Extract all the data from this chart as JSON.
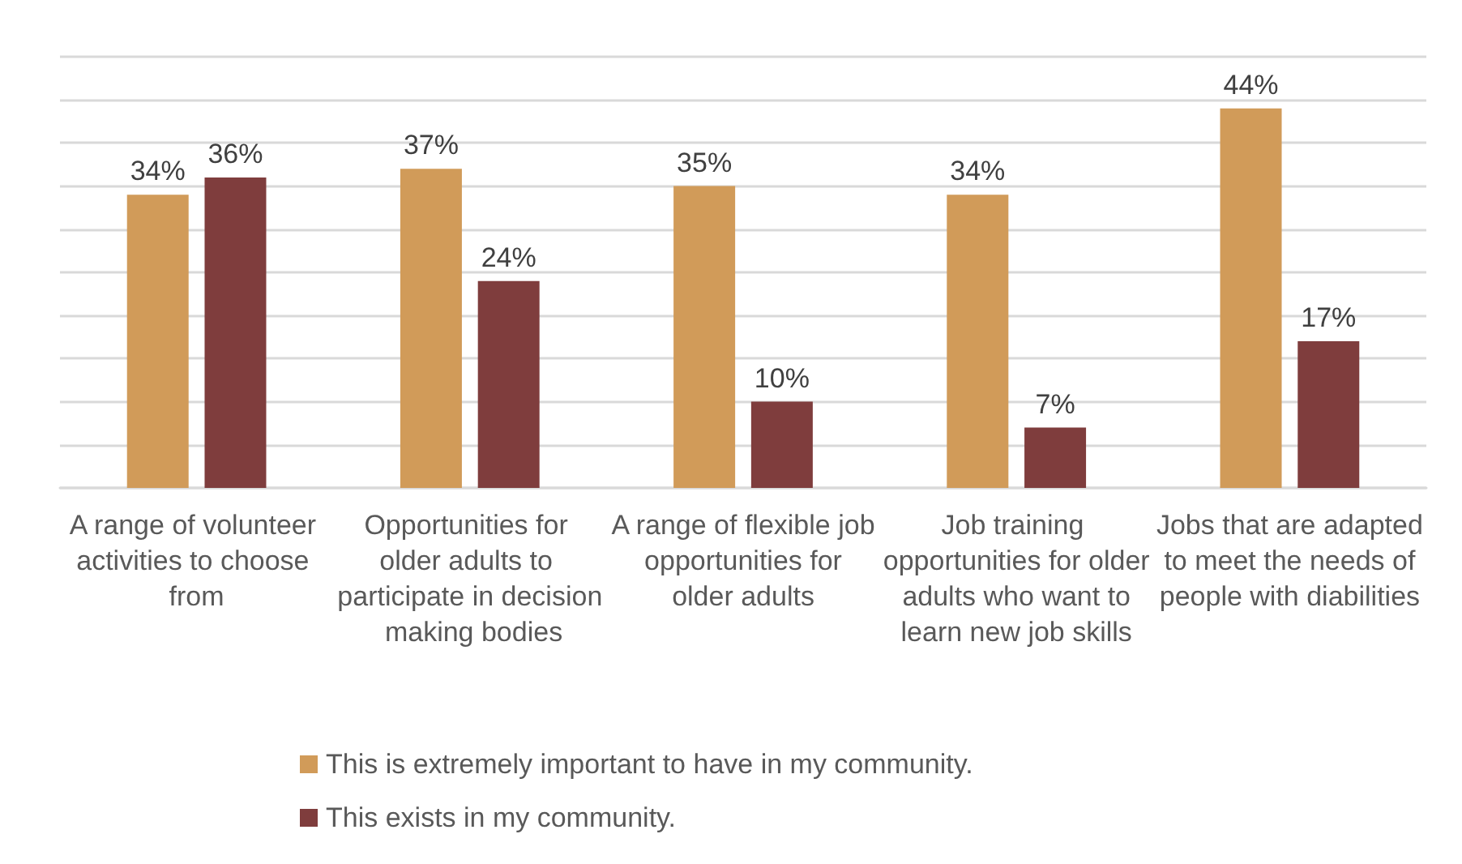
{
  "chart_data": {
    "type": "bar",
    "categories": [
      "A range of volunteer activities to choose from",
      "Opportunities for older adults to participate in decision making bodies",
      "A range of flexible job opportunities for older adults",
      "Job training opportunities for older adults who want to learn new job skills",
      "Jobs that are adapted to meet the needs of people with diabilities"
    ],
    "series": [
      {
        "name": "This is extremely important to have in my community.",
        "color": "#d19b59",
        "values": [
          34,
          37,
          35,
          34,
          44
        ],
        "value_labels": [
          "34%",
          "37%",
          "35%",
          "34%",
          "44%"
        ]
      },
      {
        "name": "This exists in my community.",
        "color": "#7f3d3d",
        "values": [
          36,
          24,
          10,
          7,
          17
        ],
        "value_labels": [
          "36%",
          "24%",
          "10%",
          "7%",
          "17%"
        ]
      }
    ],
    "ylim": [
      0,
      50
    ],
    "yticks": [
      {
        "value": 0,
        "label": null
      },
      {
        "value": 5,
        "label": null
      },
      {
        "value": 10,
        "label": null
      },
      {
        "value": 15,
        "label": null
      },
      {
        "value": 20,
        "label": null
      },
      {
        "value": 25,
        "label": null
      },
      {
        "value": 30,
        "label": null
      },
      {
        "value": 35,
        "label": null
      },
      {
        "value": 40,
        "label": null
      },
      {
        "value": 45,
        "label": null
      },
      {
        "value": 50,
        "label": null
      }
    ],
    "grid": "y",
    "legend": "bottom",
    "tick_labels": "x"
  }
}
